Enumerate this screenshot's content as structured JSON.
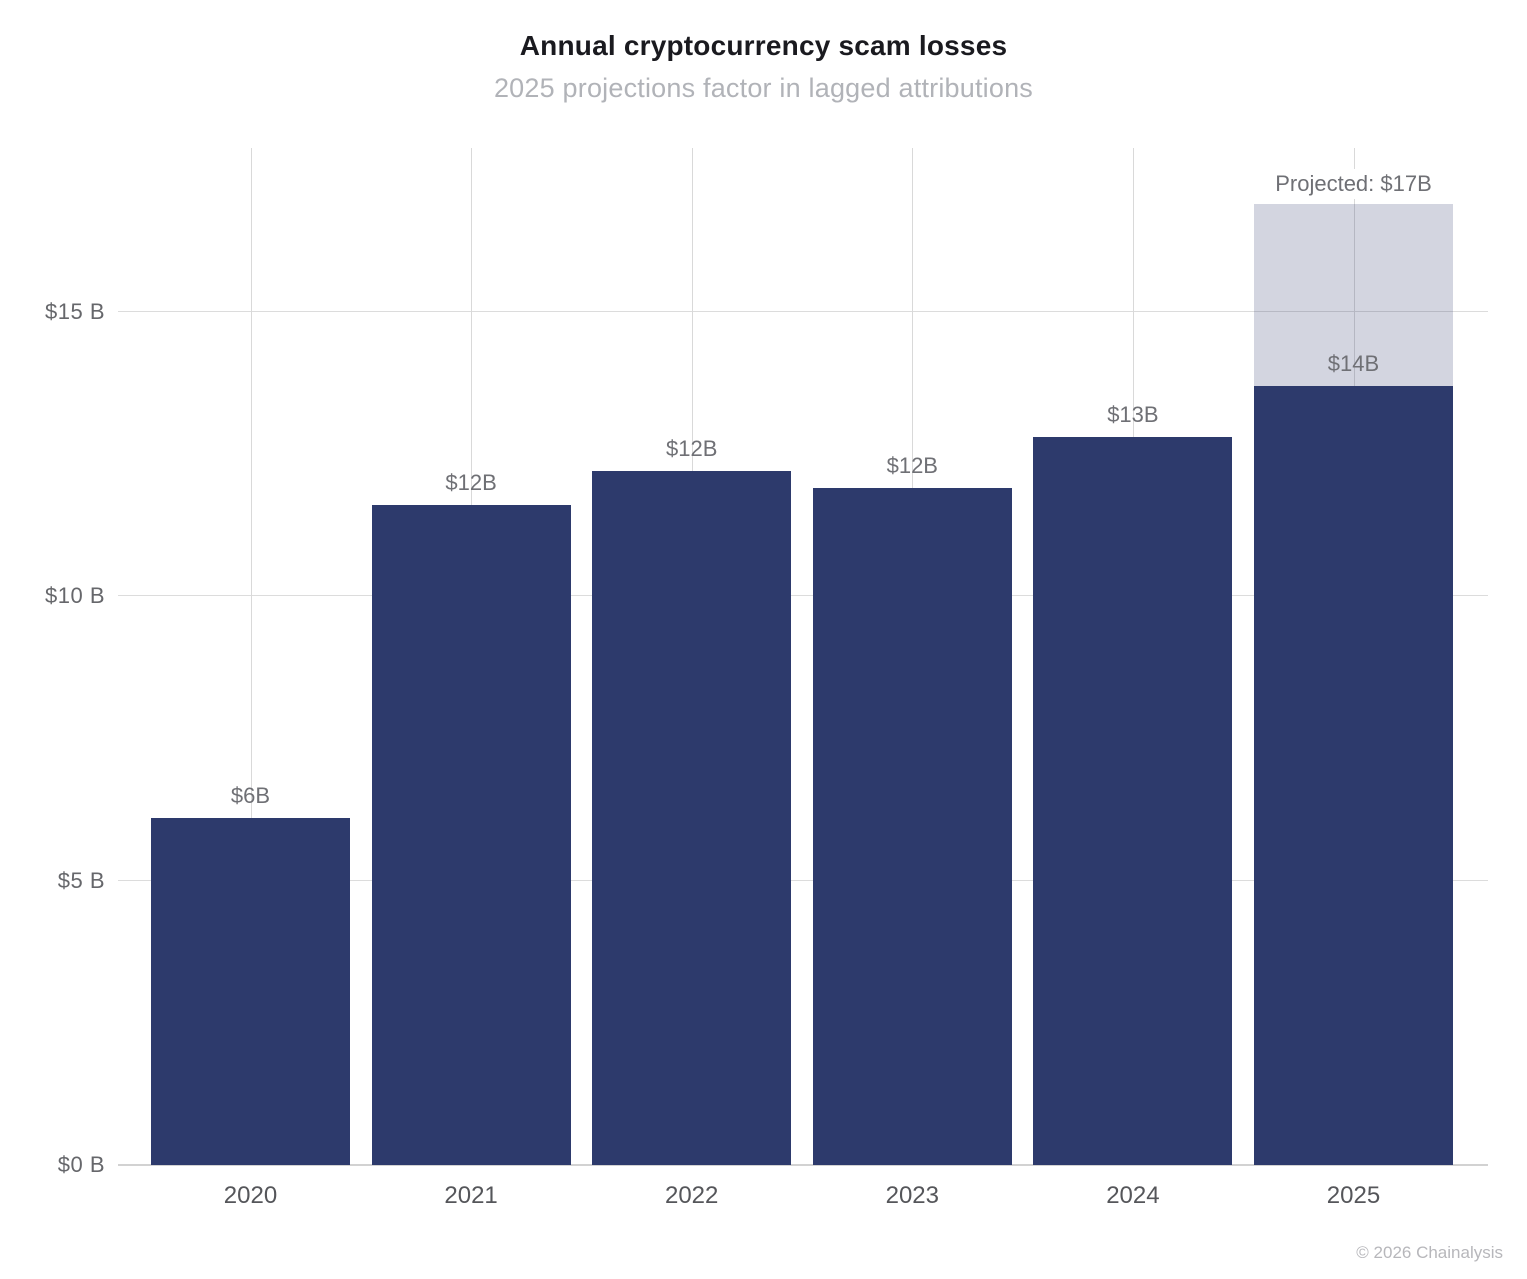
{
  "header": {
    "title": "Annual cryptocurrency scam losses",
    "subtitle": "2025 projections factor in lagged attributions"
  },
  "footer": {
    "copyright": "© 2026 Chainalysis"
  },
  "colors": {
    "bar_actual": "#2d3a6c",
    "bar_projected_fill": "rgba(45, 58, 108, 0.21)",
    "gridline": "#dcdcdc",
    "label_gray": "#6f7075"
  },
  "chart_data": {
    "type": "bar",
    "stacked": true,
    "title": "Annual cryptocurrency scam losses",
    "subtitle": "2025 projections factor in lagged attributions",
    "categories": [
      "2020",
      "2021",
      "2022",
      "2023",
      "2024",
      "2025"
    ],
    "series": [
      {
        "name": "actual",
        "color": "#2d3a6c",
        "values": [
          6.1,
          11.6,
          12.2,
          11.9,
          12.8,
          13.7
        ]
      },
      {
        "name": "projected-additional",
        "color": "rgba(45, 58, 108, 0.21)",
        "values": [
          0,
          0,
          0,
          0,
          0,
          3.2
        ]
      }
    ],
    "bar_labels": [
      "$6B",
      "$12B",
      "$12B",
      "$12B",
      "$13B",
      "$14B"
    ],
    "projected_annotation": "Projected: $17B",
    "projected_total": 16.9,
    "yticks": [
      {
        "value": 0,
        "label": "$0 B"
      },
      {
        "value": 5,
        "label": "$5 B"
      },
      {
        "value": 10,
        "label": "$10 B"
      },
      {
        "value": 15,
        "label": "$15 B"
      }
    ],
    "ylim": [
      0,
      17.88
    ],
    "xlabel": "",
    "ylabel": "",
    "grid": true,
    "legend_position": "none"
  }
}
